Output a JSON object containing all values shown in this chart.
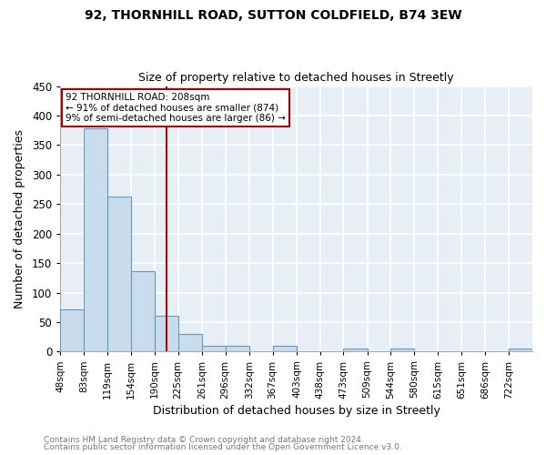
{
  "title": "92, THORNHILL ROAD, SUTTON COLDFIELD, B74 3EW",
  "subtitle": "Size of property relative to detached houses in Streetly",
  "xlabel": "Distribution of detached houses by size in Streetly",
  "ylabel": "Number of detached properties",
  "footer_line1": "Contains HM Land Registry data © Crown copyright and database right 2024.",
  "footer_line2": "Contains public sector information licensed under the Open Government Licence v3.0.",
  "bin_edges": [
    48,
    83,
    119,
    154,
    190,
    225,
    261,
    296,
    332,
    367,
    403,
    438,
    473,
    509,
    544,
    580,
    615,
    651,
    686,
    722,
    757
  ],
  "bin_counts": [
    72,
    378,
    262,
    136,
    60,
    30,
    10,
    10,
    0,
    10,
    0,
    0,
    5,
    0,
    5,
    0,
    0,
    0,
    0,
    5
  ],
  "bar_color": "#c8dced",
  "bar_edge_color": "#6699bb",
  "property_size": 208,
  "vline_color": "#aa0000",
  "annotation_line1": "92 THORNHILL ROAD: 208sqm",
  "annotation_line2": "← 91% of detached houses are smaller (874)",
  "annotation_line3": "9% of semi-detached houses are larger (86) →",
  "annotation_box_color": "#ffffff",
  "annotation_box_edge_color": "#aa0000",
  "ylim": [
    0,
    450
  ],
  "background_color": "#ffffff",
  "plot_bg_color": "#e8eef5",
  "grid_color": "#ffffff",
  "yticks": [
    0,
    50,
    100,
    150,
    200,
    250,
    300,
    350,
    400,
    450
  ]
}
